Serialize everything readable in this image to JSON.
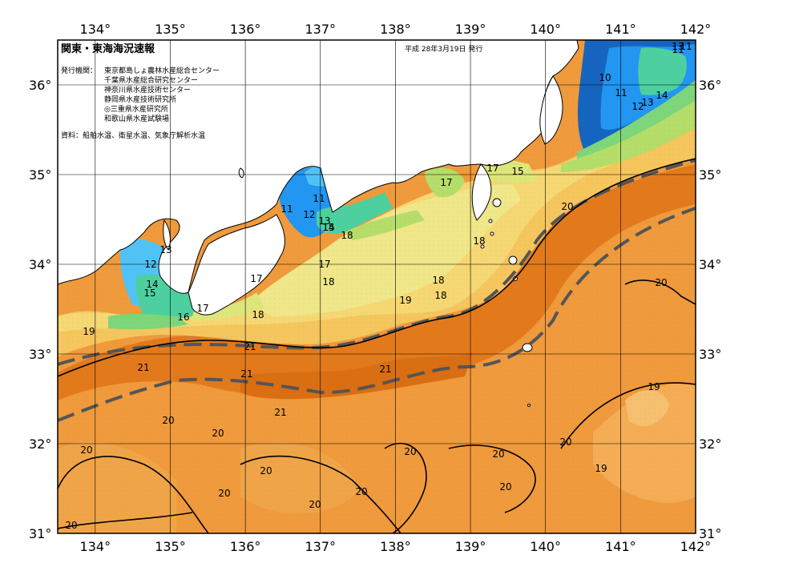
{
  "title": "関東・東海海況速報",
  "date": "平成 28年3月19日 発行",
  "issuer_label": "発行機関：",
  "issuers": [
    "東京都島しょ農林水産総合センター",
    "千葉県水産総合研究センター",
    "神奈川県水産技術センター",
    "静岡県水産技術研究所",
    "◎三重県水産研究所",
    "和歌山県水産試験場"
  ],
  "source": "資料：船舶水温、衛星水温、気象庁解析水温",
  "lon_labels": [
    "134°",
    "135°",
    "136°",
    "137°",
    "138°",
    "139°",
    "140°",
    "141°",
    "142°"
  ],
  "lat_labels": [
    "36°",
    "35°",
    "34°",
    "33°",
    "32°",
    "31°"
  ],
  "colors": {
    "land": "#ffffff",
    "sst_10": "#1565c0",
    "sst_11": "#2196f3",
    "sst_12": "#4fc3f7",
    "sst_13": "#4dd0a0",
    "sst_14": "#7ed67a",
    "sst_15": "#b5dd6a",
    "sst_16": "#dde67a",
    "sst_17": "#f0e68a",
    "sst_18": "#f5d873",
    "sst_19": "#f5b85a",
    "sst_20": "#ef9a3c",
    "sst_21": "#e27a1c",
    "kuroshio_line": "#555555"
  },
  "contour_labels": [
    {
      "text": "10"
    },
    {
      "text": "11"
    },
    {
      "text": "11"
    },
    {
      "text": "12"
    },
    {
      "text": "13"
    },
    {
      "text": "14"
    },
    {
      "text": "13"
    },
    {
      "text": "11"
    },
    {
      "text": "17"
    },
    {
      "text": "15"
    },
    {
      "text": "17"
    },
    {
      "text": "11"
    },
    {
      "text": "11"
    },
    {
      "text": "12"
    },
    {
      "text": "13"
    },
    {
      "text": "14"
    },
    {
      "text": "15"
    },
    {
      "text": "18"
    },
    {
      "text": "13"
    },
    {
      "text": "12"
    },
    {
      "text": "14"
    },
    {
      "text": "15"
    },
    {
      "text": "17"
    },
    {
      "text": "16"
    },
    {
      "text": "17"
    },
    {
      "text": "17"
    },
    {
      "text": "18"
    },
    {
      "text": "18"
    },
    {
      "text": "18"
    },
    {
      "text": "18"
    },
    {
      "text": "18"
    },
    {
      "text": "19"
    },
    {
      "text": "19"
    },
    {
      "text": "20"
    },
    {
      "text": "21"
    },
    {
      "text": "21"
    },
    {
      "text": "21"
    },
    {
      "text": "21"
    },
    {
      "text": "21"
    },
    {
      "text": "20"
    },
    {
      "text": "20"
    },
    {
      "text": "20"
    },
    {
      "text": "19"
    },
    {
      "text": "20"
    },
    {
      "text": "20"
    },
    {
      "text": "20"
    },
    {
      "text": "20"
    },
    {
      "text": "20"
    },
    {
      "text": "20"
    },
    {
      "text": "20"
    },
    {
      "text": "20"
    },
    {
      "text": "20"
    },
    {
      "text": "19"
    },
    {
      "text": "20"
    }
  ]
}
